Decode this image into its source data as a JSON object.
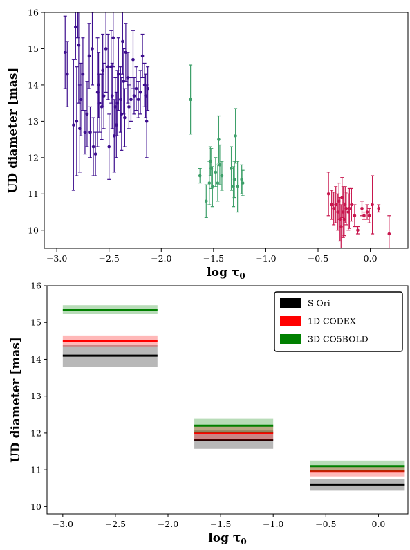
{
  "chart_data": [
    {
      "type": "scatter",
      "xlabel": "log τ",
      "xlabel_sub": "0",
      "ylabel": "UD diameter [mas]",
      "xlim": [
        -3.12,
        0.36
      ],
      "ylim": [
        9.5,
        16.0
      ],
      "xticks": [
        -3.0,
        -2.5,
        -2.0,
        -1.5,
        -1.0,
        -0.5,
        0.0
      ],
      "xtick_labels": [
        "−3.0",
        "−2.5",
        "−2.0",
        "−1.5",
        "−1.0",
        "−0.5",
        "0.0"
      ],
      "yticks": [
        10,
        11,
        12,
        13,
        14,
        15,
        16
      ],
      "ytick_labels": [
        "10",
        "11",
        "12",
        "13",
        "14",
        "15",
        "16"
      ],
      "series": [
        {
          "color": "#3d0e8e",
          "points": [
            {
              "x": -2.92,
              "y": 14.9,
              "err": 1.0
            },
            {
              "x": -2.9,
              "y": 14.3,
              "err": 0.9
            },
            {
              "x": -2.84,
              "y": 12.9,
              "err": 1.8
            },
            {
              "x": -2.82,
              "y": 15.6,
              "err": 0.9
            },
            {
              "x": -2.81,
              "y": 13.0,
              "err": 1.5
            },
            {
              "x": -2.8,
              "y": 16.5,
              "err": 1.2
            },
            {
              "x": -2.79,
              "y": 15.1,
              "err": 1.6
            },
            {
              "x": -2.78,
              "y": 12.8,
              "err": 1.2
            },
            {
              "x": -2.77,
              "y": 13.6,
              "err": 1.0
            },
            {
              "x": -2.75,
              "y": 14.3,
              "err": 1.0
            },
            {
              "x": -2.73,
              "y": 12.7,
              "err": 0.6
            },
            {
              "x": -2.71,
              "y": 13.2,
              "err": 0.9
            },
            {
              "x": -2.69,
              "y": 14.8,
              "err": 0.9
            },
            {
              "x": -2.68,
              "y": 12.7,
              "err": 0.7
            },
            {
              "x": -2.66,
              "y": 15.0,
              "err": 1.0
            },
            {
              "x": -2.65,
              "y": 12.3,
              "err": 0.8
            },
            {
              "x": -2.63,
              "y": 12.1,
              "err": 0.6
            },
            {
              "x": -2.61,
              "y": 13.8,
              "err": 1.5
            },
            {
              "x": -2.6,
              "y": 14.0,
              "err": 0.9
            },
            {
              "x": -2.59,
              "y": 13.5,
              "err": 0.8
            },
            {
              "x": -2.57,
              "y": 13.4,
              "err": 0.9
            },
            {
              "x": -2.56,
              "y": 14.4,
              "err": 1.0
            },
            {
              "x": -2.55,
              "y": 13.7,
              "err": 0.9
            },
            {
              "x": -2.53,
              "y": 15.0,
              "err": 1.2
            },
            {
              "x": -2.51,
              "y": 14.5,
              "err": 0.9
            },
            {
              "x": -2.5,
              "y": 12.3,
              "err": 0.9
            },
            {
              "x": -2.48,
              "y": 14.5,
              "err": 1.0
            },
            {
              "x": -2.47,
              "y": 13.7,
              "err": 0.9
            },
            {
              "x": -2.46,
              "y": 15.3,
              "err": 0.8
            },
            {
              "x": -2.45,
              "y": 12.6,
              "err": 1.0
            },
            {
              "x": -2.44,
              "y": 13.4,
              "err": 0.8
            },
            {
              "x": -2.43,
              "y": 12.9,
              "err": 0.9
            },
            {
              "x": -2.42,
              "y": 13.5,
              "err": 0.9
            },
            {
              "x": -2.41,
              "y": 14.3,
              "err": 1.0
            },
            {
              "x": -2.39,
              "y": 13.6,
              "err": 0.9
            },
            {
              "x": -2.38,
              "y": 13.2,
              "err": 1.0
            },
            {
              "x": -2.37,
              "y": 15.2,
              "err": 0.9
            },
            {
              "x": -2.36,
              "y": 14.1,
              "err": 0.9
            },
            {
              "x": -2.35,
              "y": 13.1,
              "err": 0.8
            },
            {
              "x": -2.34,
              "y": 14.9,
              "err": 0.8
            },
            {
              "x": -2.32,
              "y": 14.2,
              "err": 0.7
            },
            {
              "x": -2.31,
              "y": 13.4,
              "err": 0.6
            },
            {
              "x": -2.29,
              "y": 13.6,
              "err": 0.6
            },
            {
              "x": -2.27,
              "y": 14.7,
              "err": 0.8
            },
            {
              "x": -2.26,
              "y": 13.7,
              "err": 0.5
            },
            {
              "x": -2.24,
              "y": 13.9,
              "err": 0.6
            },
            {
              "x": -2.22,
              "y": 13.6,
              "err": 0.5
            },
            {
              "x": -2.2,
              "y": 13.8,
              "err": 0.6
            },
            {
              "x": -2.18,
              "y": 14.8,
              "err": 0.6
            },
            {
              "x": -2.16,
              "y": 14.0,
              "err": 0.6
            },
            {
              "x": -2.15,
              "y": 13.7,
              "err": 0.6
            },
            {
              "x": -2.13,
              "y": 13.9,
              "err": 0.6
            },
            {
              "x": -2.14,
              "y": 13.0,
              "err": 1.0
            }
          ]
        },
        {
          "color": "#3ea06a",
          "points": [
            {
              "x": -1.72,
              "y": 13.6,
              "err": 0.95
            },
            {
              "x": -1.63,
              "y": 11.5,
              "err": 0.2
            },
            {
              "x": -1.57,
              "y": 10.8,
              "err": 0.45
            },
            {
              "x": -1.54,
              "y": 11.3,
              "err": 0.6
            },
            {
              "x": -1.53,
              "y": 11.9,
              "err": 0.4
            },
            {
              "x": -1.52,
              "y": 11.7,
              "err": 0.55
            },
            {
              "x": -1.51,
              "y": 11.2,
              "err": 0.55
            },
            {
              "x": -1.48,
              "y": 11.6,
              "err": 0.4
            },
            {
              "x": -1.46,
              "y": 11.3,
              "err": 0.5
            },
            {
              "x": -1.45,
              "y": 12.5,
              "err": 0.65
            },
            {
              "x": -1.44,
              "y": 11.8,
              "err": 0.55
            },
            {
              "x": -1.42,
              "y": 11.5,
              "err": 0.4
            },
            {
              "x": -1.33,
              "y": 11.7,
              "err": 0.6
            },
            {
              "x": -1.31,
              "y": 11.2,
              "err": 0.55
            },
            {
              "x": -1.3,
              "y": 11.4,
              "err": 0.5
            },
            {
              "x": -1.29,
              "y": 12.6,
              "err": 0.75
            },
            {
              "x": -1.27,
              "y": 11.2,
              "err": 0.7
            },
            {
              "x": -1.23,
              "y": 11.4,
              "err": 0.4
            },
            {
              "x": -1.22,
              "y": 11.3,
              "err": 0.35
            }
          ]
        },
        {
          "color": "#c8174e",
          "points": [
            {
              "x": -0.4,
              "y": 11.0,
              "err": 0.6
            },
            {
              "x": -0.37,
              "y": 10.7,
              "err": 0.4
            },
            {
              "x": -0.35,
              "y": 10.6,
              "err": 0.45
            },
            {
              "x": -0.33,
              "y": 10.7,
              "err": 0.5
            },
            {
              "x": -0.31,
              "y": 10.5,
              "err": 0.5
            },
            {
              "x": -0.3,
              "y": 10.8,
              "err": 0.5
            },
            {
              "x": -0.29,
              "y": 10.3,
              "err": 0.6
            },
            {
              "x": -0.28,
              "y": 10.1,
              "err": 0.6
            },
            {
              "x": -0.27,
              "y": 10.9,
              "err": 0.55
            },
            {
              "x": -0.26,
              "y": 10.5,
              "err": 0.7
            },
            {
              "x": -0.25,
              "y": 10.3,
              "err": 0.45
            },
            {
              "x": -0.24,
              "y": 10.7,
              "err": 0.5
            },
            {
              "x": -0.23,
              "y": 10.6,
              "err": 0.45
            },
            {
              "x": -0.21,
              "y": 10.5,
              "err": 0.5
            },
            {
              "x": -0.2,
              "y": 10.6,
              "err": 0.55
            },
            {
              "x": -0.18,
              "y": 10.7,
              "err": 0.45
            },
            {
              "x": -0.15,
              "y": 10.4,
              "err": 0.3
            },
            {
              "x": -0.12,
              "y": 10.0,
              "err": 0.1
            },
            {
              "x": -0.08,
              "y": 10.6,
              "err": 0.2
            },
            {
              "x": -0.06,
              "y": 10.4,
              "err": 0.1
            },
            {
              "x": -0.03,
              "y": 10.5,
              "err": 0.2
            },
            {
              "x": -0.01,
              "y": 10.4,
              "err": 0.2
            },
            {
              "x": 0.02,
              "y": 10.7,
              "err": 0.8
            },
            {
              "x": 0.08,
              "y": 10.6,
              "err": 0.1
            },
            {
              "x": 0.18,
              "y": 9.9,
              "err": 0.5
            }
          ]
        }
      ]
    },
    {
      "type": "bar",
      "xlabel": "log τ",
      "xlabel_sub": "0",
      "ylabel": "UD diameter [mas]",
      "xlim": [
        -3.15,
        0.28
      ],
      "ylim": [
        9.8,
        16.0
      ],
      "xticks": [
        -3.0,
        -2.5,
        -2.0,
        -1.5,
        -1.0,
        -0.5,
        0.0
      ],
      "xtick_labels": [
        "−3.0",
        "−2.5",
        "−2.0",
        "−1.5",
        "−1.0",
        "−0.5",
        "0.0"
      ],
      "yticks": [
        10,
        11,
        12,
        13,
        14,
        15,
        16
      ],
      "ytick_labels": [
        "10",
        "11",
        "12",
        "13",
        "14",
        "15",
        "16"
      ],
      "legend_position": "top-right",
      "bins": [
        {
          "x0": -3.0,
          "x1": -2.1
        },
        {
          "x0": -1.75,
          "x1": -1.0
        },
        {
          "x0": -0.65,
          "x1": 0.25
        }
      ],
      "series": [
        {
          "name": "S Ori",
          "color": "#000000",
          "values": [
            14.1,
            11.82,
            10.6
          ],
          "band": [
            0.3,
            0.25,
            0.15
          ]
        },
        {
          "name": "1D CODEX",
          "color": "#ff0000",
          "values": [
            14.5,
            12.0,
            10.97
          ],
          "band": [
            0.15,
            0.2,
            0.15
          ]
        },
        {
          "name": "3D CO5BOLD",
          "color": "#008000",
          "values": [
            15.35,
            12.2,
            11.1
          ],
          "band": [
            0.12,
            0.2,
            0.15
          ]
        }
      ]
    }
  ]
}
